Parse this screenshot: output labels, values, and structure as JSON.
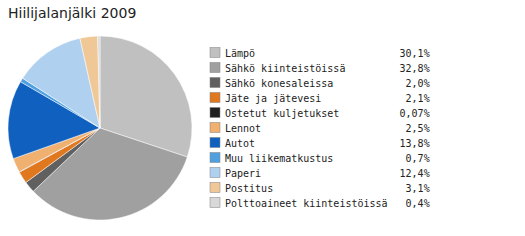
{
  "chart_data": {
    "type": "pie",
    "title": "Hiilijalanjälki 2009",
    "categories": [
      "Lämpö",
      "Sähkö kiinteistöissä",
      "Sähkö konesaleissa",
      "Jäte ja jätevesi",
      "Ostetut kuljetukset",
      "Lennot",
      "Autot",
      "Muu liikematkustus",
      "Paperi",
      "Postitus",
      "Polttoaineet kiinteistöissä"
    ],
    "values": [
      30.1,
      32.8,
      2.0,
      2.1,
      0.07,
      2.5,
      13.8,
      0.7,
      12.4,
      3.1,
      0.4
    ],
    "value_labels": [
      "30,1%",
      "32,8%",
      "2,0%",
      "2,1%",
      "0,07%",
      "2,5%",
      "13,8%",
      "0,7%",
      "12,4%",
      "3,1%",
      "0,4%"
    ],
    "colors": [
      "#c0c0c0",
      "#a0a0a0",
      "#606060",
      "#e07820",
      "#202020",
      "#f0b070",
      "#1060c0",
      "#50a0e0",
      "#b0d0f0",
      "#f0c898",
      "#d8d8d8"
    ],
    "legend": "right"
  }
}
